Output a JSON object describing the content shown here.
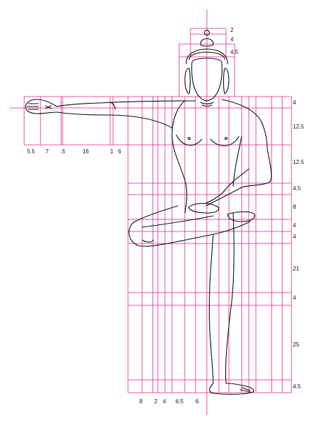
{
  "colors": {
    "grid": "#e0218a",
    "figure": "#111111",
    "background": "#ffffff"
  },
  "right_measures": [
    "2",
    "4",
    "4.5",
    "4",
    "12.5",
    "12.5",
    "4.5",
    "8",
    "4",
    "4",
    "21",
    "4",
    "25",
    "4.5"
  ],
  "arm_measures": [
    "5.5",
    "7",
    ".5",
    "16",
    "1",
    "6"
  ],
  "foot_measures": [
    "8",
    "2",
    "4",
    "6.5",
    "6"
  ]
}
